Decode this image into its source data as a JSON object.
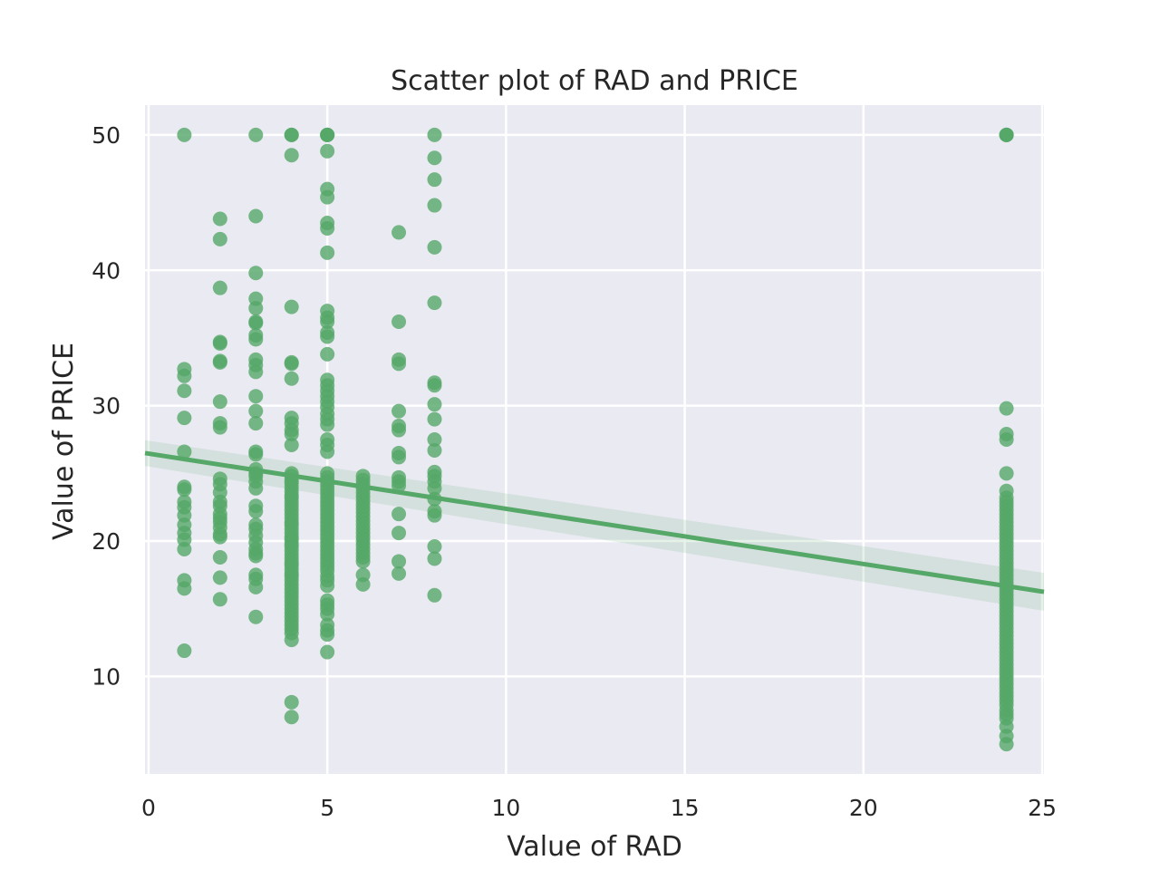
{
  "chart_data": {
    "type": "scatter",
    "title": "Scatter plot of RAD and PRICE",
    "xlabel": "Value of RAD",
    "ylabel": "Value of PRICE",
    "xlim": [
      -0.1,
      25.05
    ],
    "ylim": [
      2.8,
      52.2
    ],
    "xticks": [
      0,
      5,
      10,
      15,
      20,
      25
    ],
    "yticks": [
      10,
      20,
      30,
      40,
      50
    ],
    "grid": true,
    "background": "#eaeaf2",
    "point_color": "#55a868",
    "series": [
      {
        "x": 1,
        "y": [
          50.0,
          32.7,
          32.2,
          31.1,
          29.1,
          26.6,
          24.0,
          23.8,
          22.9,
          22.5,
          21.9,
          21.2,
          20.6,
          20.1,
          19.4,
          17.1,
          16.5,
          11.9
        ]
      },
      {
        "x": 2,
        "y": [
          43.8,
          42.3,
          38.7,
          34.7,
          34.6,
          33.3,
          33.2,
          30.3,
          28.7,
          28.4,
          24.6,
          24.2,
          23.6,
          22.9,
          22.6,
          22.0,
          21.7,
          21.4,
          21.0,
          20.5,
          20.3,
          18.8,
          17.3,
          15.7
        ]
      },
      {
        "x": 3,
        "y": [
          50.0,
          44.0,
          39.8,
          37.9,
          37.2,
          36.2,
          36.1,
          35.2,
          34.9,
          33.4,
          33.0,
          32.5,
          30.7,
          29.6,
          28.7,
          26.6,
          26.4,
          25.3,
          25.0,
          24.8,
          24.4,
          23.9,
          22.6,
          22.2,
          21.2,
          20.9,
          20.4,
          19.9,
          19.4,
          19.1,
          18.9,
          17.5,
          17.2,
          16.6,
          14.4
        ]
      },
      {
        "x": 4,
        "y": [
          50.0,
          50.0,
          48.5,
          37.3,
          33.2,
          33.1,
          32.0,
          29.1,
          28.7,
          28.2,
          27.9,
          27.1,
          25.0,
          24.8,
          24.5,
          24.3,
          24.0,
          23.7,
          23.4,
          23.2,
          22.9,
          22.6,
          22.3,
          22.0,
          21.7,
          21.4,
          21.2,
          20.9,
          20.6,
          20.3,
          20.1,
          19.8,
          19.6,
          19.3,
          19.0,
          18.7,
          18.4,
          18.2,
          17.9,
          17.6,
          17.4,
          17.1,
          16.8,
          16.5,
          16.2,
          15.9,
          15.6,
          15.3,
          15.0,
          14.7,
          14.4,
          14.1,
          13.8,
          13.5,
          13.2,
          12.7,
          8.1,
          7.0
        ]
      },
      {
        "x": 5,
        "y": [
          50.0,
          50.0,
          50.0,
          48.8,
          46.0,
          45.4,
          43.5,
          43.1,
          41.3,
          37.0,
          36.5,
          36.2,
          35.4,
          35.1,
          33.8,
          31.9,
          31.5,
          31.1,
          30.7,
          30.3,
          29.9,
          29.4,
          29.0,
          28.6,
          27.5,
          27.1,
          26.6,
          25.0,
          24.7,
          24.4,
          24.1,
          23.8,
          23.5,
          23.2,
          22.9,
          22.6,
          22.3,
          22.0,
          21.7,
          21.4,
          21.1,
          20.8,
          20.5,
          20.2,
          19.9,
          19.6,
          19.3,
          19.0,
          18.7,
          18.4,
          18.1,
          17.8,
          17.4,
          17.1,
          16.7,
          15.6,
          15.3,
          15.0,
          14.6,
          13.8,
          13.4,
          13.1,
          11.8
        ]
      },
      {
        "x": 6,
        "y": [
          24.8,
          24.5,
          24.2,
          23.9,
          23.6,
          23.3,
          23.0,
          22.7,
          22.4,
          22.1,
          21.8,
          21.5,
          21.2,
          20.9,
          20.6,
          20.3,
          20.0,
          19.7,
          19.4,
          19.1,
          18.8,
          18.5,
          17.5,
          16.8
        ]
      },
      {
        "x": 7,
        "y": [
          42.8,
          36.2,
          33.4,
          33.1,
          29.6,
          28.5,
          28.2,
          26.5,
          26.2,
          24.7,
          24.4,
          24.1,
          22.0,
          20.6,
          18.5,
          17.6
        ]
      },
      {
        "x": 8,
        "y": [
          50.0,
          48.3,
          46.7,
          44.8,
          41.7,
          37.6,
          31.7,
          31.5,
          30.1,
          29.0,
          27.5,
          26.7,
          25.1,
          24.8,
          24.4,
          23.9,
          23.1,
          22.2,
          21.9,
          19.6,
          18.7,
          16.0
        ]
      },
      {
        "x": 24,
        "y": [
          50.0,
          50.0,
          50.0,
          29.8,
          27.9,
          27.5,
          25.0,
          23.7,
          23.2,
          22.9,
          22.6,
          22.3,
          22.0,
          21.7,
          21.4,
          21.1,
          20.8,
          20.5,
          20.2,
          19.9,
          19.6,
          19.3,
          19.0,
          18.7,
          18.4,
          18.1,
          17.8,
          17.5,
          17.2,
          16.9,
          16.6,
          16.3,
          16.0,
          15.7,
          15.4,
          15.1,
          14.8,
          14.5,
          14.2,
          13.9,
          13.6,
          13.3,
          13.0,
          12.7,
          12.4,
          12.1,
          11.8,
          11.5,
          11.2,
          10.9,
          10.6,
          10.3,
          10.0,
          9.7,
          9.4,
          9.1,
          8.8,
          8.5,
          8.2,
          7.9,
          7.5,
          7.2,
          6.9,
          6.3,
          5.6,
          5.0
        ]
      }
    ],
    "regression": {
      "x_range": [
        -0.1,
        25.05
      ],
      "y_at_start": 26.5,
      "y_at_end": 16.25,
      "ci_halfwidth_start": 0.95,
      "ci_halfwidth_end": 1.4
    }
  }
}
